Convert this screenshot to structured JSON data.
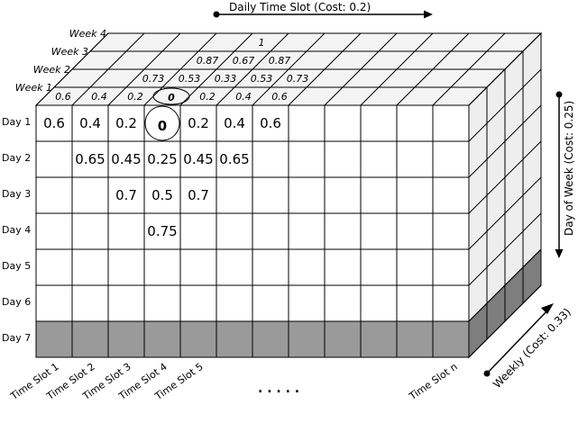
{
  "axes": {
    "daily": "Daily Time Slot (Cost: 0.2)",
    "day_of_week": "Day of Week (Cost: 0.25)",
    "weekly": "Weekly (Cost: 0.33)"
  },
  "weeks": [
    "Week 1",
    "Week 2",
    "Week 3",
    "Week 4"
  ],
  "days": [
    "Day 1",
    "Day 2",
    "Day 3",
    "Day 4",
    "Day 5",
    "Day 6",
    "Day 7"
  ],
  "time_slots": [
    "Time Slot 1",
    "Time Slot 2",
    "Time Slot 3",
    "Time Slot 4",
    "Time Slot 5"
  ],
  "last_time_slot": "Time Slot n",
  "ellipsis": ". . . . .",
  "front_values": [
    [
      "0.6",
      "0.4",
      "0.2",
      "0",
      "0.2",
      "0.4",
      "0.6"
    ],
    [
      "",
      "0.65",
      "0.45",
      "0.25",
      "0.45",
      "0.65"
    ],
    [
      "",
      "",
      "0.7",
      "0.5",
      "0.7"
    ],
    [
      "",
      "",
      "",
      "0.75"
    ]
  ],
  "top_values": [
    [
      "0.6",
      "0.4",
      "0.2",
      "0",
      "0.2",
      "0.4",
      "0.6"
    ],
    [
      "",
      "",
      "0.73",
      "0.53",
      "0.33",
      "0.53",
      "0.73"
    ],
    [
      "",
      "",
      "",
      "0.87",
      "0.67",
      "0.87"
    ],
    [
      "",
      "",
      "",
      "",
      "1"
    ]
  ],
  "colors": {
    "shaded": "#9a9a9a",
    "shaded_side": "#7e7e7e",
    "top_face": "#f4f4f4",
    "side_face": "#eeeeee",
    "line": "#000000"
  }
}
